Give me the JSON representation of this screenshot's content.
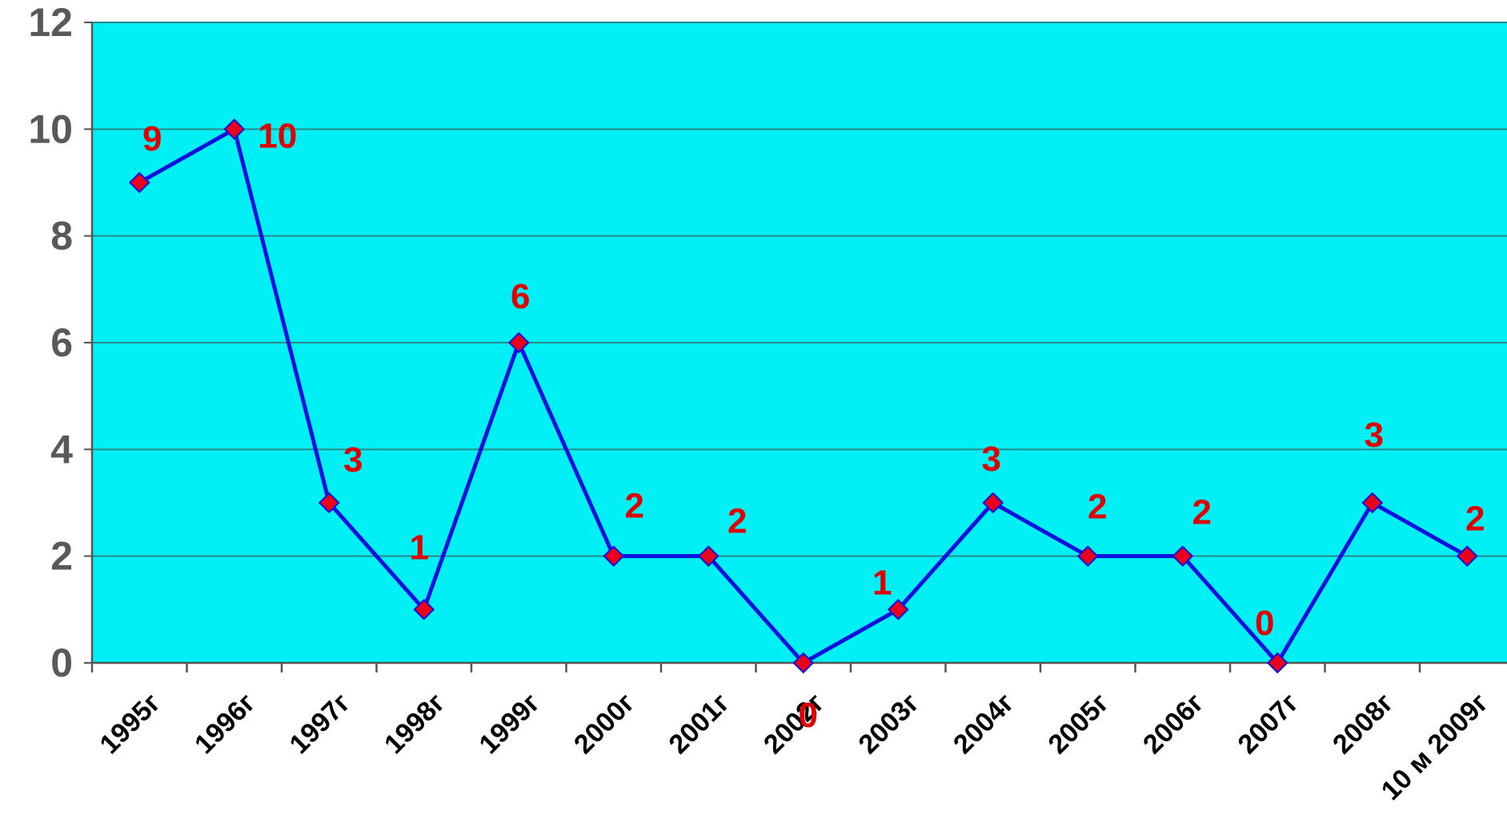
{
  "chart_data": {
    "type": "line",
    "title": "",
    "xlabel": "",
    "ylabel": "",
    "categories": [
      "1995г",
      "1996г",
      "1997г",
      "1998г",
      "1999г",
      "2000г",
      "2001г",
      "2002г",
      "2003г",
      "2004г",
      "2005г",
      "2006г",
      "2007г",
      "2008г",
      "10 м 2009г"
    ],
    "series": [
      {
        "values": [
          9,
          10,
          3,
          1,
          6,
          2,
          2,
          0,
          1,
          3,
          2,
          2,
          0,
          3,
          2
        ]
      }
    ],
    "data_labels": [
      "9",
      "10",
      "3",
      "1",
      "6",
      "2",
      "2",
      "0",
      "1",
      "3",
      "2",
      "2",
      "0",
      "3",
      "2"
    ],
    "ylim": [
      0,
      12
    ],
    "yticks": [
      "0",
      "2",
      "4",
      "6",
      "8",
      "10",
      "12"
    ],
    "grid": true,
    "legend": "none",
    "colors": {
      "plot_bg": "#00f0f5",
      "line": "#1010e0",
      "marker": "#e8001c",
      "labels": "#e00000",
      "gridline": "#2a8a8a",
      "axis": "#555555"
    }
  }
}
